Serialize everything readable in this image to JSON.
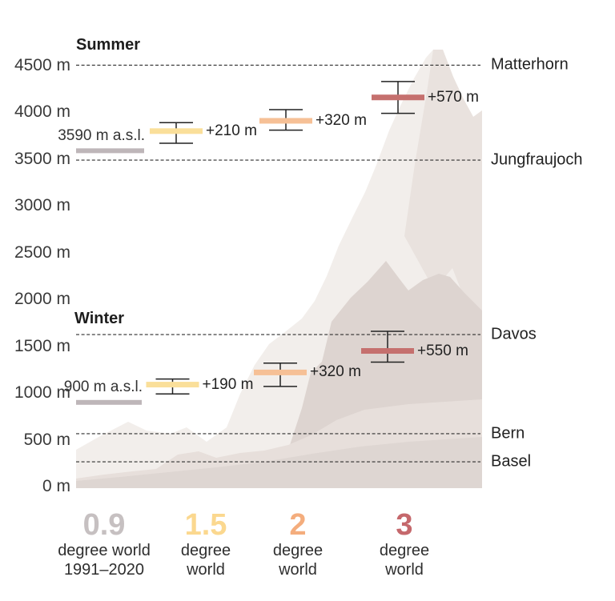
{
  "chart_data": {
    "type": "custom",
    "subtype": "elevation-scenario-infographic",
    "unit": "m",
    "y_axis": {
      "ticks": [
        {
          "value": 4500,
          "label": "4500 m"
        },
        {
          "value": 4000,
          "label": "4000 m"
        },
        {
          "value": 3500,
          "label": "3500 m"
        },
        {
          "value": 3000,
          "label": "3000 m"
        },
        {
          "value": 2500,
          "label": "2500 m"
        },
        {
          "value": 2000,
          "label": "2000 m"
        },
        {
          "value": 1500,
          "label": "1500 m"
        },
        {
          "value": 1000,
          "label": "1000 m"
        },
        {
          "value": 500,
          "label": "500 m"
        },
        {
          "value": 0,
          "label": "0 m"
        }
      ],
      "range": [
        0,
        4500
      ]
    },
    "reference_lines": [
      {
        "label": "Matterhorn",
        "elevation": 4505
      },
      {
        "label": "Jungfraujoch",
        "elevation": 3490
      },
      {
        "label": "Davos",
        "elevation": 1625
      },
      {
        "label": "Bern",
        "elevation": 565
      },
      {
        "label": "Basel",
        "elevation": 265
      }
    ],
    "bar_colors": {
      "0.9": "#beb6b9",
      "1.5": "#fadf9a",
      "2": "#f6c096",
      "3": "#c5706e"
    },
    "seasons": [
      {
        "title": "Summer",
        "baseline_label": "3590 m a.s.l.",
        "bars": [
          {
            "scenario": "0.9",
            "elevation": 3590,
            "baseline": true
          },
          {
            "scenario": "1.5",
            "elevation": 3800,
            "delta_label": "+210 m",
            "range": [
              3670,
              3890
            ]
          },
          {
            "scenario": "2",
            "elevation": 3910,
            "delta_label": "+320 m",
            "range": [
              3810,
              4030
            ]
          },
          {
            "scenario": "3",
            "elevation": 4160,
            "delta_label": "+570 m",
            "range": [
              3990,
              4330
            ]
          }
        ]
      },
      {
        "title": "Winter",
        "baseline_label": "900 m a.s.l.",
        "bars": [
          {
            "scenario": "0.9",
            "elevation": 900,
            "baseline": true
          },
          {
            "scenario": "1.5",
            "elevation": 1090,
            "delta_label": "+190 m",
            "range": [
              990,
              1150
            ]
          },
          {
            "scenario": "2",
            "elevation": 1220,
            "delta_label": "+320 m",
            "range": [
              1070,
              1320
            ]
          },
          {
            "scenario": "3",
            "elevation": 1450,
            "delta_label": "+550 m",
            "range": [
              1330,
              1660
            ]
          }
        ]
      }
    ],
    "x_axis": {
      "scenarios": [
        {
          "number": "0.9",
          "number_color": "#c6c0c1",
          "lines": [
            "degree world",
            "1991–2020"
          ]
        },
        {
          "number": "1.5",
          "number_color": "#fbd88f",
          "lines": [
            "degree",
            "world"
          ]
        },
        {
          "number": "2",
          "number_color": "#f4ad7d",
          "lines": [
            "degree",
            "world"
          ]
        },
        {
          "number": "3",
          "number_color": "#c5686c",
          "lines": [
            "degree",
            "world"
          ]
        }
      ]
    },
    "legend_position": "none",
    "grid": "dashed-reference-lines-only"
  }
}
